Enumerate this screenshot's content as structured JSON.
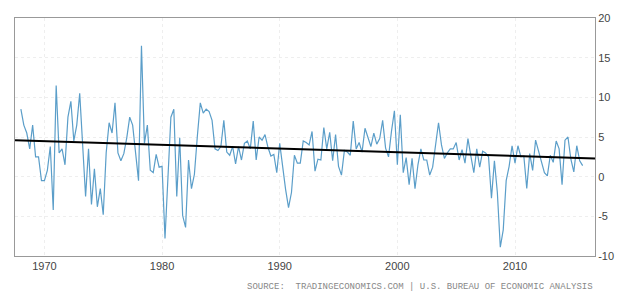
{
  "chart_data": {
    "type": "line",
    "annotations": [
      "SOURCE:  TRADINGECONOMICS.COM | U.S. BUREAU OF ECONOMIC ANALYSIS"
    ],
    "xlim": [
      1967.5,
      2016.8
    ],
    "xticks": [
      1970,
      1980,
      1990,
      2000,
      2010
    ],
    "ylim": [
      -10,
      20
    ],
    "yticks": [
      -10,
      -5,
      0,
      5,
      10,
      15,
      20
    ],
    "grid": true,
    "series": [
      {
        "color": "#5b9ec9",
        "x": [
          1968.0,
          1968.25,
          1968.5,
          1968.75,
          1969.0,
          1969.25,
          1969.5,
          1969.75,
          1970.0,
          1970.25,
          1970.5,
          1970.75,
          1971.0,
          1971.25,
          1971.5,
          1971.75,
          1972.0,
          1972.25,
          1972.5,
          1972.75,
          1973.0,
          1973.25,
          1973.5,
          1973.75,
          1974.0,
          1974.25,
          1974.5,
          1974.75,
          1975.0,
          1975.25,
          1975.5,
          1975.75,
          1976.0,
          1976.25,
          1976.5,
          1976.75,
          1977.0,
          1977.25,
          1977.5,
          1977.75,
          1978.0,
          1978.25,
          1978.5,
          1978.75,
          1979.0,
          1979.25,
          1979.5,
          1979.75,
          1980.0,
          1980.25,
          1980.5,
          1980.75,
          1981.0,
          1981.25,
          1981.5,
          1981.75,
          1982.0,
          1982.25,
          1982.5,
          1982.75,
          1983.0,
          1983.25,
          1983.5,
          1983.75,
          1984.0,
          1984.25,
          1984.5,
          1984.75,
          1985.0,
          1985.25,
          1985.5,
          1985.75,
          1986.0,
          1986.25,
          1986.5,
          1986.75,
          1987.0,
          1987.25,
          1987.5,
          1987.75,
          1988.0,
          1988.25,
          1988.5,
          1988.75,
          1989.0,
          1989.25,
          1989.5,
          1989.75,
          1990.0,
          1990.25,
          1990.5,
          1990.75,
          1991.0,
          1991.25,
          1991.5,
          1991.75,
          1992.0,
          1992.25,
          1992.5,
          1992.75,
          1993.0,
          1993.25,
          1993.5,
          1993.75,
          1994.0,
          1994.25,
          1994.5,
          1994.75,
          1995.0,
          1995.25,
          1995.5,
          1995.75,
          1996.0,
          1996.25,
          1996.5,
          1996.75,
          1997.0,
          1997.25,
          1997.5,
          1997.75,
          1998.0,
          1998.25,
          1998.5,
          1998.75,
          1999.0,
          1999.25,
          1999.5,
          1999.75,
          2000.0,
          2000.25,
          2000.5,
          2000.75,
          2001.0,
          2001.25,
          2001.5,
          2001.75,
          2002.0,
          2002.25,
          2002.5,
          2002.75,
          2003.0,
          2003.25,
          2003.5,
          2003.75,
          2004.0,
          2004.25,
          2004.5,
          2004.75,
          2005.0,
          2005.25,
          2005.5,
          2005.75,
          2006.0,
          2006.25,
          2006.5,
          2006.75,
          2007.0,
          2007.25,
          2007.5,
          2007.75,
          2008.0,
          2008.25,
          2008.5,
          2008.75,
          2009.0,
          2009.25,
          2009.5,
          2009.75,
          2010.0,
          2010.25,
          2010.5,
          2010.75,
          2011.0,
          2011.25,
          2011.5,
          2011.75,
          2012.0,
          2012.25,
          2012.5,
          2012.75,
          2013.0,
          2013.25,
          2013.5,
          2013.75,
          2014.0,
          2014.25,
          2014.5,
          2014.75,
          2015.0,
          2015.25,
          2015.5,
          2015.75
        ],
        "values": [
          8.5,
          6.5,
          5.5,
          3.5,
          6.5,
          2.5,
          2.5,
          -0.5,
          -0.5,
          0.8,
          3.8,
          -4.2,
          11.5,
          3.0,
          3.5,
          1.5,
          7.5,
          9.5,
          4.5,
          6.5,
          10.5,
          4.5,
          -2.5,
          3.5,
          -3.5,
          1.0,
          -3.8,
          -1.5,
          -4.8,
          3.0,
          6.8,
          5.5,
          9.3,
          3.0,
          2.0,
          2.9,
          4.9,
          7.5,
          6.5,
          3.0,
          -0.5,
          16.5,
          4.2,
          6.5,
          0.8,
          0.5,
          2.8,
          1.2,
          1.3,
          -7.8,
          -0.7,
          7.5,
          8.5,
          -2.5,
          4.9,
          -4.9,
          -6.4,
          2.1,
          -1.5,
          0.3,
          5.1,
          9.3,
          8.0,
          8.5,
          8.2,
          7.1,
          3.5,
          3.3,
          3.8,
          7.1,
          3.1,
          2.7,
          3.8,
          1.6,
          3.8,
          2.1,
          4.2,
          4.5,
          3.5,
          7.0,
          2.1,
          5.0,
          4.6,
          5.3,
          3.7,
          2.6,
          2.8,
          0.5,
          4.2,
          0.9,
          -1.6,
          -3.9,
          -2.0,
          2.7,
          1.7,
          1.7,
          4.5,
          4.3,
          4.0,
          5.7,
          0.7,
          2.2,
          2.1,
          6.2,
          3.5,
          5.6,
          2.0,
          5.3,
          1.3,
          0.2,
          3.3,
          3.1,
          2.7,
          7.0,
          3.5,
          4.3,
          3.1,
          6.1,
          4.9,
          3.8,
          5.5,
          4.1,
          4.8,
          7.1,
          3.6,
          2.5,
          5.7,
          8.3,
          1.5,
          7.8,
          0.5,
          2.4,
          -1.0,
          2.3,
          -1.5,
          1.5,
          3.5,
          2.1,
          2.1,
          0.2,
          1.2,
          3.8,
          6.8,
          4.0,
          2.3,
          3.0,
          3.5,
          3.5,
          4.3,
          2.1,
          3.4,
          1.7,
          4.8,
          2.6,
          0.5,
          3.5,
          1.2,
          3.2,
          3.0,
          2.5,
          -2.7,
          2.0,
          -2.0,
          -8.9,
          -6.7,
          -0.5,
          1.3,
          3.9,
          1.7,
          3.9,
          2.5,
          2.6,
          -1.5,
          2.9,
          0.8,
          4.6,
          3.2,
          1.8,
          0.5,
          0.1,
          2.7,
          1.8,
          4.5,
          3.5,
          -1.0,
          4.6,
          5.0,
          2.2,
          0.6,
          3.9,
          2.0,
          1.4
        ]
      },
      {
        "color": "#000000",
        "x": [
          1967.5,
          2016.8
        ],
        "values": [
          4.6,
          2.3
        ]
      }
    ]
  }
}
